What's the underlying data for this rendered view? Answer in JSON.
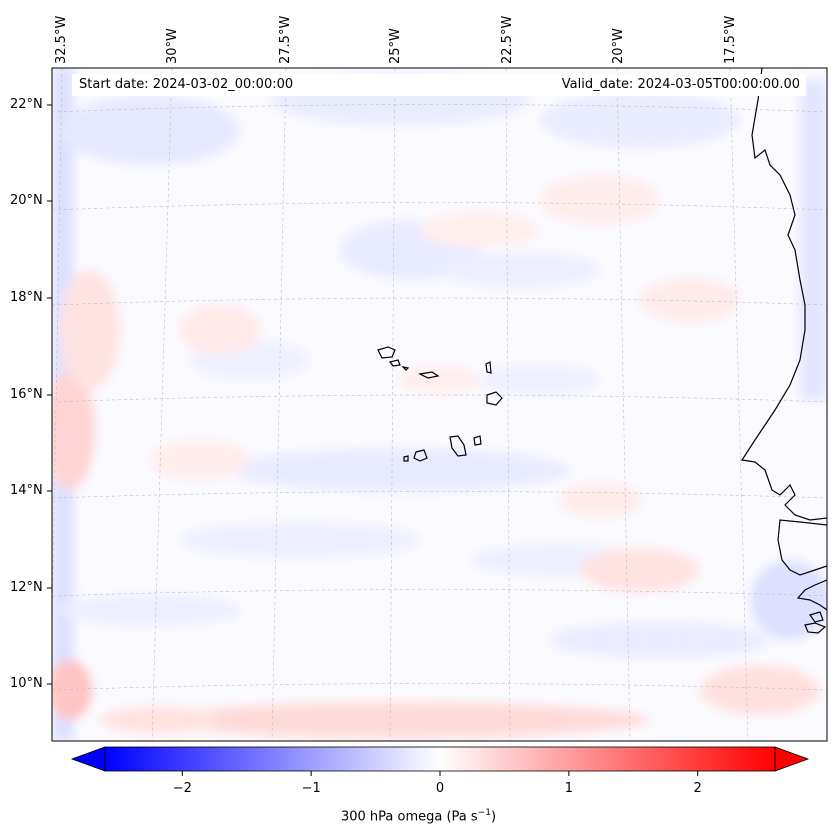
{
  "map": {
    "start_date_label": "Start date: 2024-03-02_00:00:00",
    "valid_date_label": "Valid_date: 2024-03-05T00:00:00.00",
    "longitude_labels": [
      "32.5°W",
      "30°W",
      "27.5°W",
      "25°W",
      "22.5°W",
      "20°W",
      "17.5°W"
    ],
    "latitude_labels": [
      "22°N",
      "20°N",
      "18°N",
      "16°N",
      "14°N",
      "12°N",
      "10°N"
    ],
    "field": "300 hPa omega",
    "region": "Cabo Verde / West African coast",
    "colormap": "bwr"
  },
  "colorbar": {
    "label_text": "300 hPa omega (Pa s",
    "label_exponent": "−1",
    "label_close": ")",
    "ticks": [
      "−2",
      "−1",
      "0",
      "1",
      "2"
    ],
    "tick_values": [
      -2,
      -1,
      0,
      1,
      2
    ],
    "range": [
      -2.6,
      2.6
    ],
    "extend": "both",
    "colors": {
      "min": "#0000ff",
      "mid": "#ffffff",
      "max": "#ff0000"
    }
  }
}
